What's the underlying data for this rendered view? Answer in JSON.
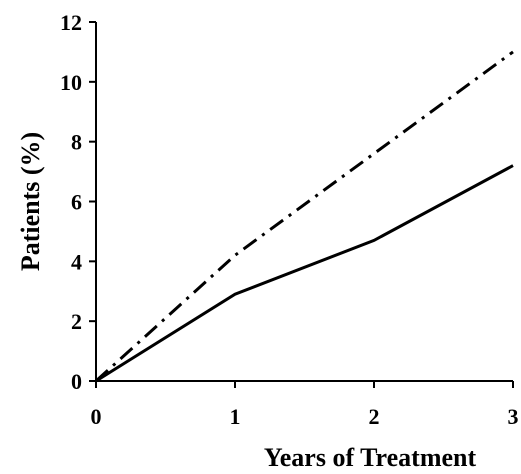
{
  "chart_data": {
    "type": "line",
    "title": "",
    "xlabel": "Years of Treatment",
    "ylabel": "Patients (%)",
    "x": [
      0,
      1,
      2,
      3
    ],
    "xticks": [
      "0",
      "1",
      "2",
      "3"
    ],
    "yticks": [
      "0",
      "2",
      "4",
      "6",
      "8",
      "10",
      "12"
    ],
    "xlim": [
      0,
      3
    ],
    "ylim": [
      0,
      12
    ],
    "grid": false,
    "series": [
      {
        "values": [
          0,
          2.9,
          4.7,
          7.2
        ],
        "line_style": "solid",
        "color": "#000000"
      },
      {
        "values": [
          0,
          4.2,
          7.6,
          11.0
        ],
        "line_style": "dash-dot",
        "color": "#000000"
      }
    ]
  }
}
